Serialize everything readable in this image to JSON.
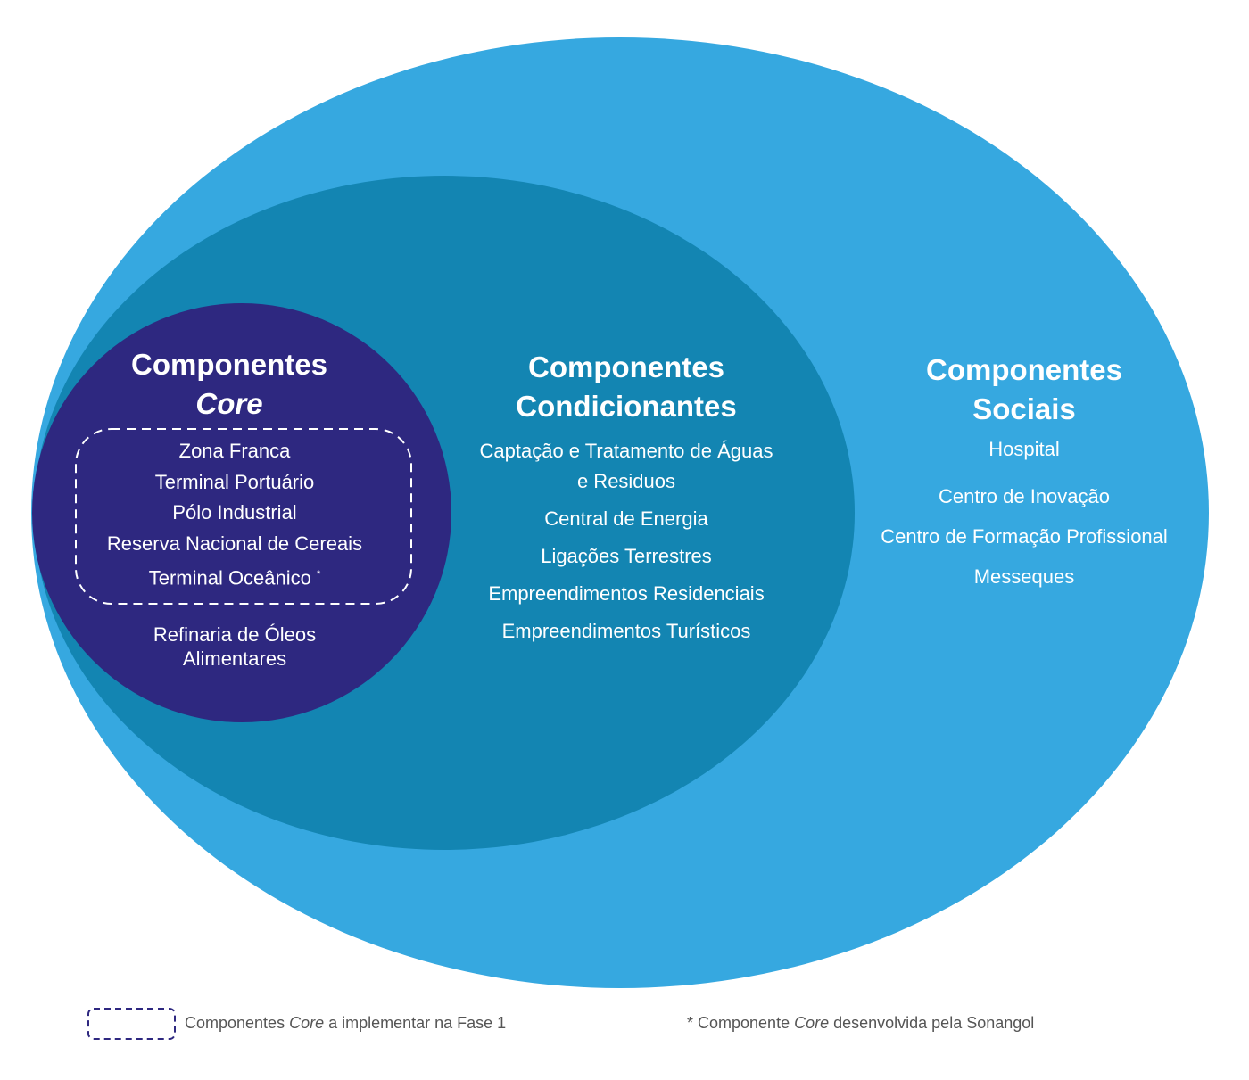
{
  "colors": {
    "outer": "#36a8e0",
    "middle": "#1385b2",
    "core": "#2e2880",
    "legend_dash": "#2e2880"
  },
  "core": {
    "title_line1": "Componentes",
    "title_line2": "Core",
    "phase1_items": [
      "Zona Franca",
      "Terminal Portuário",
      "Pólo Industrial",
      "Reserva Nacional de Cereais",
      "Terminal Oceânico"
    ],
    "asterisk": "*",
    "other_items": [
      "Refinaria de Óleos",
      "Alimentares"
    ]
  },
  "condicionantes": {
    "title_line1": "Componentes",
    "title_line2": "Condicionantes",
    "items": [
      "Captação e Tratamento de Águas",
      "e Residuos",
      "Central de Energia",
      "Ligações Terrestres",
      "Empreendimentos Residenciais",
      "Empreendimentos Turísticos"
    ]
  },
  "sociais": {
    "title_line1": "Componentes",
    "title_line2": "Sociais",
    "items": [
      "Hospital",
      "Centro de Inovação",
      "Centro de Formação Profissional",
      "Messeques"
    ]
  },
  "legend": {
    "phase1_pre": "Componentes ",
    "phase1_italic": "Core",
    "phase1_post": " a implementar na Fase 1",
    "sonangol_pre": "* Componente ",
    "sonangol_italic": "Core",
    "sonangol_post": " desenvolvida pela Sonangol"
  }
}
